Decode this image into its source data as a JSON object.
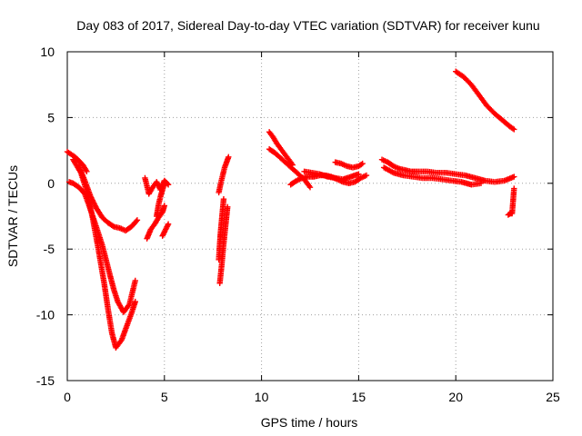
{
  "chart_data": {
    "type": "scatter",
    "title": "Day 083 of 2017, Sidereal Day-to-day VTEC variation (SDTVAR) for receiver kunu",
    "xlabel": "GPS time / hours",
    "ylabel": "SDTVAR / TECUs",
    "xlim": [
      0,
      25
    ],
    "ylim": [
      -15,
      10
    ],
    "xticks": [
      0,
      5,
      10,
      15,
      20,
      25
    ],
    "yticks": [
      -15,
      -10,
      -5,
      0,
      5,
      10
    ],
    "grid": true,
    "marker": "+",
    "color": "#ff0000",
    "segments": [
      {
        "name": "arc-1",
        "x": [
          0.0,
          0.2,
          0.4,
          0.6,
          0.8,
          1.0
        ],
        "y": [
          2.4,
          2.2,
          2.0,
          1.7,
          1.4,
          0.9
        ]
      },
      {
        "name": "arc-2",
        "x": [
          0.1,
          0.3,
          0.6,
          0.9,
          1.1,
          1.4,
          1.8,
          2.2,
          2.4,
          2.6,
          2.9,
          3.2,
          3.5
        ],
        "y": [
          0.1,
          0.0,
          -0.3,
          -0.8,
          -1.6,
          -2.9,
          -4.7,
          -7.0,
          -8.1,
          -9.0,
          -9.8,
          -9.2,
          -7.4
        ]
      },
      {
        "name": "arc-3",
        "x": [
          0.3,
          0.7,
          1.0,
          1.3,
          1.6,
          1.9,
          2.1,
          2.3,
          2.5,
          2.8,
          3.1,
          3.3,
          3.5
        ],
        "y": [
          1.8,
          0.8,
          -0.6,
          -2.6,
          -5.0,
          -7.6,
          -9.6,
          -11.4,
          -12.5,
          -11.9,
          -10.7,
          -9.9,
          -9.0
        ]
      },
      {
        "name": "arc-4",
        "x": [
          0.6,
          0.9,
          1.2,
          1.5,
          1.8,
          2.1,
          2.4,
          2.7,
          3.0,
          3.3,
          3.6
        ],
        "y": [
          1.3,
          0.2,
          -1.0,
          -1.9,
          -2.6,
          -3.0,
          -3.3,
          -3.4,
          -3.6,
          -3.3,
          -2.8
        ]
      },
      {
        "name": "arc-5",
        "x": [
          4.0,
          4.1,
          4.2,
          4.4,
          4.6,
          4.8,
          5.0,
          5.2
        ],
        "y": [
          0.4,
          -0.2,
          -0.8,
          -0.3,
          0.1,
          -0.5,
          0.2,
          -0.1
        ]
      },
      {
        "name": "arc-6",
        "x": [
          4.1,
          4.3,
          4.5,
          4.7,
          4.9,
          5.0
        ],
        "y": [
          -4.2,
          -3.5,
          -3.1,
          -2.6,
          -2.2,
          -1.7
        ]
      },
      {
        "name": "arc-7",
        "x": [
          4.6,
          4.7,
          4.8,
          4.9,
          5.0
        ],
        "y": [
          -2.5,
          -1.6,
          -1.0,
          -0.5,
          0.0
        ]
      },
      {
        "name": "arc-8",
        "x": [
          4.9,
          5.0,
          5.1,
          5.2
        ],
        "y": [
          -4.0,
          -3.7,
          -3.4,
          -3.1
        ]
      },
      {
        "name": "arc-9",
        "x": [
          7.8,
          7.85,
          7.9,
          7.95,
          8.0,
          8.05
        ],
        "y": [
          -5.8,
          -4.6,
          -3.6,
          -2.8,
          -2.0,
          -1.2
        ]
      },
      {
        "name": "arc-10",
        "x": [
          7.8,
          7.9,
          8.0,
          8.1,
          8.2,
          8.3
        ],
        "y": [
          -0.7,
          0.0,
          0.6,
          1.2,
          1.6,
          2.0
        ]
      },
      {
        "name": "arc-11",
        "x": [
          7.85,
          7.95,
          8.05,
          8.15,
          8.25
        ],
        "y": [
          -7.6,
          -6.2,
          -4.6,
          -3.2,
          -1.8
        ]
      },
      {
        "name": "arc-12",
        "x": [
          10.4,
          10.6,
          10.8,
          11.0,
          11.2,
          11.4,
          11.6
        ],
        "y": [
          3.9,
          3.5,
          3.0,
          2.6,
          2.2,
          1.8,
          1.4
        ]
      },
      {
        "name": "arc-13",
        "x": [
          10.4,
          10.7,
          11.0,
          11.3,
          11.6,
          11.9,
          12.2,
          12.5
        ],
        "y": [
          2.6,
          2.3,
          1.9,
          1.5,
          1.1,
          0.7,
          0.3,
          -0.3
        ]
      },
      {
        "name": "arc-14",
        "x": [
          11.5,
          11.8,
          12.1,
          12.4,
          12.7,
          13.0,
          13.3,
          13.6,
          13.9,
          14.2,
          14.5,
          14.8,
          15.1,
          15.4
        ],
        "y": [
          -0.1,
          0.2,
          0.4,
          0.5,
          0.5,
          0.6,
          0.6,
          0.5,
          0.3,
          0.1,
          0.0,
          0.1,
          0.4,
          0.6
        ]
      },
      {
        "name": "arc-15",
        "x": [
          12.2,
          12.6,
          13.0,
          13.4,
          13.8,
          14.2,
          14.6,
          15.0
        ],
        "y": [
          0.9,
          0.8,
          0.7,
          0.5,
          0.4,
          0.3,
          0.5,
          0.7
        ]
      },
      {
        "name": "arc-16",
        "x": [
          13.8,
          14.1,
          14.4,
          14.7,
          15.0,
          15.2
        ],
        "y": [
          1.6,
          1.5,
          1.3,
          1.2,
          1.3,
          1.5
        ]
      },
      {
        "name": "arc-17",
        "x": [
          16.2,
          16.5,
          16.8,
          17.1,
          17.4,
          17.7,
          18.0,
          18.5,
          19.0,
          19.5,
          20.0,
          20.5,
          21.0,
          21.5,
          22.0,
          22.5,
          23.0
        ],
        "y": [
          1.8,
          1.6,
          1.3,
          1.1,
          1.0,
          0.9,
          0.9,
          0.9,
          0.8,
          0.8,
          0.7,
          0.6,
          0.4,
          0.2,
          0.1,
          0.2,
          0.5
        ]
      },
      {
        "name": "arc-18",
        "x": [
          16.3,
          16.8,
          17.3,
          17.8,
          18.3,
          18.8,
          19.3,
          19.8,
          20.3,
          20.8,
          21.3
        ],
        "y": [
          1.2,
          0.8,
          0.6,
          0.5,
          0.4,
          0.4,
          0.3,
          0.2,
          0.1,
          -0.1,
          0.0
        ]
      },
      {
        "name": "arc-19",
        "x": [
          20.0,
          20.4,
          20.8,
          21.2,
          21.6,
          22.0,
          22.4,
          22.8,
          23.0
        ],
        "y": [
          8.5,
          8.1,
          7.5,
          6.7,
          5.9,
          5.3,
          4.8,
          4.3,
          4.1
        ]
      },
      {
        "name": "arc-20",
        "x": [
          22.7,
          22.8,
          22.9,
          23.0
        ],
        "y": [
          -2.4,
          -2.3,
          -2.3,
          -0.4
        ]
      }
    ]
  }
}
